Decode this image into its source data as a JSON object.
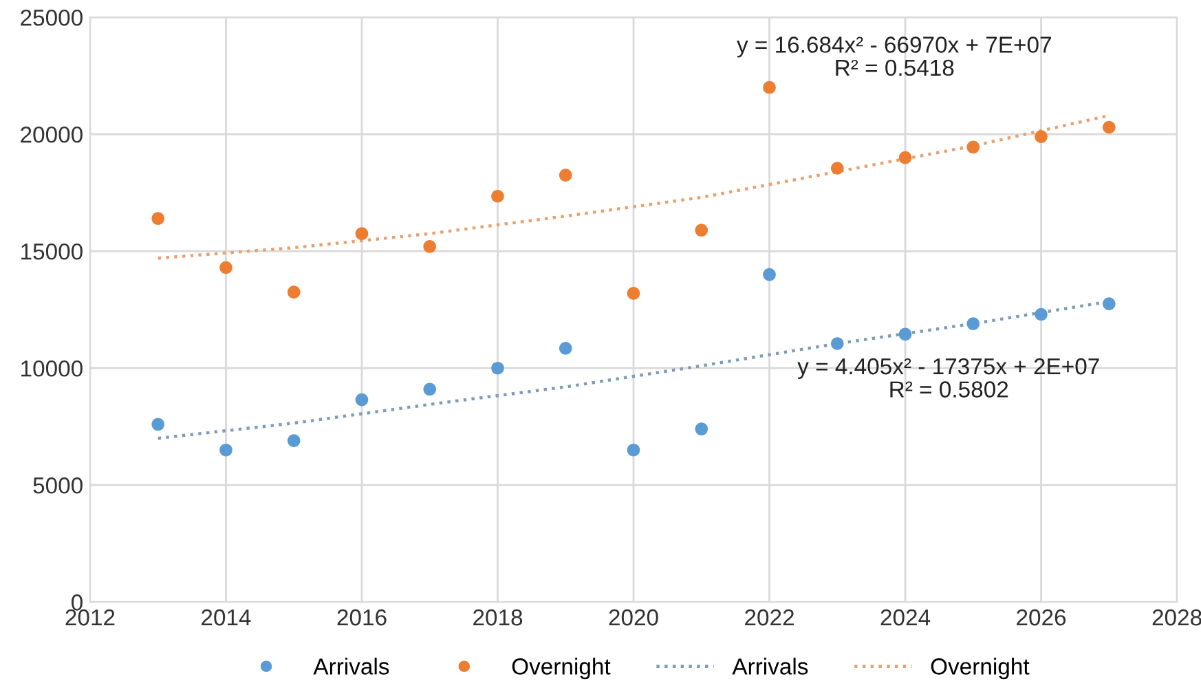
{
  "chart_data": {
    "type": "scatter",
    "x": [
      2013,
      2014,
      2015,
      2016,
      2017,
      2018,
      2019,
      2020,
      2021,
      2022,
      2023,
      2024,
      2025,
      2026,
      2027
    ],
    "series": [
      {
        "name": "Arrivals",
        "marker": "circle",
        "color": "#5b9bd5",
        "values": [
          7600,
          6500,
          6900,
          8650,
          9100,
          10000,
          10850,
          6500,
          7400,
          14000,
          11050,
          11450,
          11900,
          12300,
          12750
        ]
      },
      {
        "name": "Overnight",
        "marker": "circle",
        "color": "#ed7d31",
        "values": [
          16400,
          14300,
          13250,
          15750,
          15200,
          17350,
          18250,
          13200,
          15900,
          22000,
          18550,
          19000,
          19450,
          19900,
          20300
        ]
      },
      {
        "name": "Arrivals",
        "type": "line",
        "line_style": "dotted",
        "color": "#7f9bb8",
        "x": [
          2013,
          2015,
          2017,
          2019,
          2021,
          2023,
          2025,
          2027
        ],
        "values": [
          7000,
          7650,
          8450,
          9200,
          10100,
          11050,
          11900,
          12850
        ]
      },
      {
        "name": "Overnight",
        "type": "line",
        "line_style": "dotted",
        "color": "#e8a070",
        "x": [
          2013,
          2015,
          2017,
          2019,
          2021,
          2023,
          2025,
          2027
        ],
        "values": [
          14700,
          15150,
          15750,
          16500,
          17300,
          18400,
          19500,
          20800
        ]
      }
    ],
    "xlim": [
      2012,
      2028
    ],
    "xticks": [
      2012,
      2014,
      2016,
      2018,
      2020,
      2022,
      2024,
      2026,
      2028
    ],
    "ylim": [
      0,
      25000
    ],
    "yticks": [
      0,
      5000,
      10000,
      15000,
      20000,
      25000
    ],
    "grid": true,
    "legend": "bottom",
    "annotations": [
      "y = 16.684x² - 66970x + 7E+07\nR² = 0.5418",
      "y = 4.405x² - 17375x + 2E+07\nR² = 0.5802"
    ]
  }
}
